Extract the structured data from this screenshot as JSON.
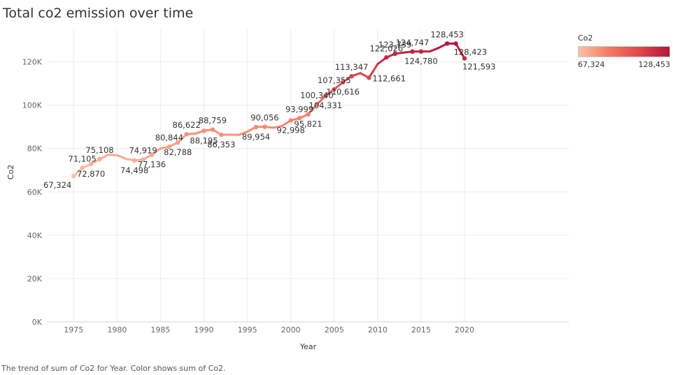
{
  "title": "Total co2 emission over time",
  "caption": "The trend of sum of Co2 for Year.  Color shows sum of Co2.",
  "legend": {
    "title": "Co2",
    "min_label": "67,324",
    "max_label": "128,453"
  },
  "colors": {
    "low": "#fbbfa6",
    "mid": "#f47a62",
    "high": "#b5163a",
    "grid": "#ececec"
  },
  "chart_data": {
    "type": "line",
    "title": "Total co2 emission over time",
    "xlabel": "Year",
    "ylabel": "Co2",
    "xlim": [
      1972,
      2032
    ],
    "ylim": [
      0,
      135000
    ],
    "x_ticks": [
      1975,
      1980,
      1985,
      1990,
      1995,
      2000,
      2005,
      2010,
      2015,
      2020
    ],
    "y_ticks": [
      {
        "value": 0,
        "label": "0K"
      },
      {
        "value": 20000,
        "label": "20K"
      },
      {
        "value": 40000,
        "label": "40K"
      },
      {
        "value": 60000,
        "label": "60K"
      },
      {
        "value": 80000,
        "label": "80K"
      },
      {
        "value": 100000,
        "label": "100K"
      },
      {
        "value": 120000,
        "label": "120K"
      }
    ],
    "grid": true,
    "legend_position": "top-right",
    "points": [
      {
        "x": 1975,
        "y": 67324,
        "label": "67,324",
        "pos": "bl"
      },
      {
        "x": 1976,
        "y": 71105,
        "label": "71,105",
        "pos": "a"
      },
      {
        "x": 1977,
        "y": 72870,
        "label": "72,870",
        "pos": "b"
      },
      {
        "x": 1978,
        "y": 75108,
        "label": "75,108",
        "pos": "a"
      },
      {
        "x": 1979,
        "y": 77200,
        "label": "",
        "pos": ""
      },
      {
        "x": 1980,
        "y": 76900,
        "label": "",
        "pos": ""
      },
      {
        "x": 1981,
        "y": 75300,
        "label": "",
        "pos": ""
      },
      {
        "x": 1982,
        "y": 74498,
        "label": "74,498",
        "pos": "b"
      },
      {
        "x": 1983,
        "y": 74919,
        "label": "74,919",
        "pos": "a"
      },
      {
        "x": 1984,
        "y": 77136,
        "label": "77,136",
        "pos": "b"
      },
      {
        "x": 1985,
        "y": 80100,
        "label": "",
        "pos": ""
      },
      {
        "x": 1986,
        "y": 80844,
        "label": "80,844",
        "pos": "a"
      },
      {
        "x": 1987,
        "y": 82788,
        "label": "82,788",
        "pos": "b"
      },
      {
        "x": 1988,
        "y": 86622,
        "label": "86,622",
        "pos": "a"
      },
      {
        "x": 1989,
        "y": 86900,
        "label": "",
        "pos": ""
      },
      {
        "x": 1990,
        "y": 88195,
        "label": "88,195",
        "pos": "b"
      },
      {
        "x": 1991,
        "y": 88759,
        "label": "88,759",
        "pos": "a"
      },
      {
        "x": 1992,
        "y": 86353,
        "label": "86,353",
        "pos": "b"
      },
      {
        "x": 1993,
        "y": 86400,
        "label": "",
        "pos": ""
      },
      {
        "x": 1994,
        "y": 86300,
        "label": "",
        "pos": ""
      },
      {
        "x": 1995,
        "y": 87800,
        "label": "",
        "pos": ""
      },
      {
        "x": 1996,
        "y": 89954,
        "label": "89,954",
        "pos": "b"
      },
      {
        "x": 1997,
        "y": 90056,
        "label": "90,056",
        "pos": "a"
      },
      {
        "x": 1998,
        "y": 89600,
        "label": "",
        "pos": ""
      },
      {
        "x": 1999,
        "y": 90400,
        "label": "",
        "pos": ""
      },
      {
        "x": 2000,
        "y": 92998,
        "label": "92,998",
        "pos": "b"
      },
      {
        "x": 2001,
        "y": 93999,
        "label": "93,999",
        "pos": "a"
      },
      {
        "x": 2002,
        "y": 95821,
        "label": "95,821",
        "pos": "b"
      },
      {
        "x": 2003,
        "y": 100340,
        "label": "100,340",
        "pos": "a"
      },
      {
        "x": 2004,
        "y": 104331,
        "label": "104,331",
        "pos": "b"
      },
      {
        "x": 2005,
        "y": 107355,
        "label": "107,355",
        "pos": "a"
      },
      {
        "x": 2006,
        "y": 110616,
        "label": "110,616",
        "pos": "b"
      },
      {
        "x": 2007,
        "y": 113347,
        "label": "113,347",
        "pos": "a"
      },
      {
        "x": 2008,
        "y": 114800,
        "label": "",
        "pos": ""
      },
      {
        "x": 2009,
        "y": 112661,
        "label": "112,661",
        "pos": "r"
      },
      {
        "x": 2010,
        "y": 119000,
        "label": "",
        "pos": ""
      },
      {
        "x": 2011,
        "y": 122026,
        "label": "122,026",
        "pos": "a"
      },
      {
        "x": 2012,
        "y": 123739,
        "label": "123,739",
        "pos": "a"
      },
      {
        "x": 2013,
        "y": 124300,
        "label": "",
        "pos": ""
      },
      {
        "x": 2014,
        "y": 124747,
        "label": "124,747",
        "pos": "a"
      },
      {
        "x": 2015,
        "y": 124780,
        "label": "124,780",
        "pos": "b"
      },
      {
        "x": 2016,
        "y": 124800,
        "label": "",
        "pos": ""
      },
      {
        "x": 2017,
        "y": 126400,
        "label": "",
        "pos": ""
      },
      {
        "x": 2018,
        "y": 128453,
        "label": "128,453",
        "pos": "a"
      },
      {
        "x": 2019,
        "y": 128423,
        "label": "128,423",
        "pos": "br"
      },
      {
        "x": 2020,
        "y": 121593,
        "label": "121,593",
        "pos": "br"
      }
    ]
  }
}
